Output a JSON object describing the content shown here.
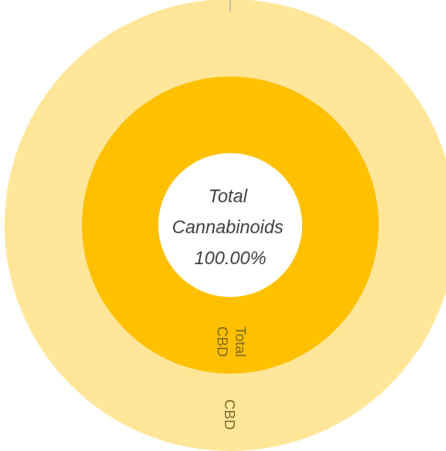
{
  "chart_data": {
    "type": "pie",
    "subtype": "sunburst",
    "colors": {
      "outer_ring": "#FFE699",
      "inner_ring": "#FFC000",
      "center": "#FFFFFF",
      "center_text": "#404040",
      "label_text": "#7F6A2A"
    },
    "center_label": {
      "line1": "Total",
      "line2": "Cannabinoids",
      "line3": "100.00%"
    },
    "rings": [
      {
        "level": "inner",
        "slices": [
          {
            "label_line1": "Total",
            "label_line2": "CBD",
            "value": 100
          }
        ]
      },
      {
        "level": "outer",
        "slices": [
          {
            "label": "CBD",
            "value": 100
          }
        ]
      }
    ]
  }
}
